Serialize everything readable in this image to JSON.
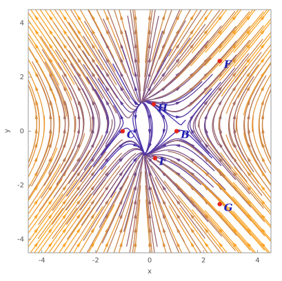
{
  "chart_data": {
    "type": "stream",
    "xlabel": "x",
    "ylabel": "y",
    "xlim": [
      -4.5,
      4.5
    ],
    "ylim": [
      -4.5,
      4.5
    ],
    "xticks": [
      -4,
      -2,
      0,
      2,
      4
    ],
    "yticks": [
      -4,
      -2,
      0,
      2,
      4
    ],
    "point_color": "#e3261c",
    "points": [
      {
        "label": "C",
        "x": -1,
        "y": 0
      },
      {
        "label": "B",
        "x": 1,
        "y": 0
      },
      {
        "label": "H",
        "x": 0.15,
        "y": 1.0
      },
      {
        "label": "I",
        "x": 0.2,
        "y": -1.0
      },
      {
        "label": "F",
        "x": 2.6,
        "y": 2.6
      },
      {
        "label": "G",
        "x": 2.6,
        "y": -2.7
      }
    ]
  }
}
